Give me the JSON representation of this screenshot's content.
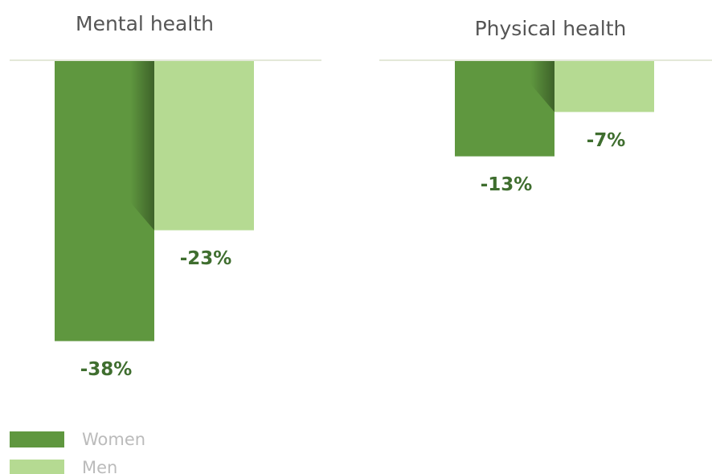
{
  "chart_data": [
    {
      "type": "bar",
      "title": "Mental health",
      "values": [
        -38,
        -23
      ],
      "value_labels": [
        "-38%",
        "-23%"
      ],
      "ylim": [
        -40,
        0
      ]
    },
    {
      "type": "bar",
      "title": "Physical health",
      "values": [
        -13,
        -7
      ],
      "value_labels": [
        "-13%",
        "-7%"
      ],
      "ylim": [
        -40,
        0
      ]
    }
  ],
  "legend": [
    {
      "name": "Women",
      "color": "#5f973f"
    },
    {
      "name": "Men",
      "color": "#b5da92"
    }
  ]
}
